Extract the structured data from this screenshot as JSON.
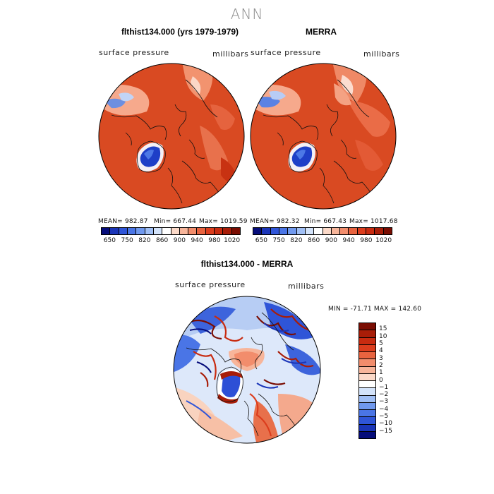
{
  "title": "ANN",
  "left_panel": {
    "title": "flthist134.000 (yrs 1979-1979)",
    "variable": "surface pressure",
    "units": "millibars",
    "mean_label": "MEAN= 982.87",
    "min_label": "Min= 667.44",
    "max_label": "Max= 1019.59"
  },
  "right_panel": {
    "title": "MERRA",
    "variable": "surface pressure",
    "units": "millibars",
    "mean_label": "MEAN= 982.32",
    "min_label": "Min= 667.43",
    "max_label": "Max= 1017.68"
  },
  "diff_panel": {
    "title": "flthist134.000 - MERRA",
    "variable": "surface pressure",
    "units": "millibars",
    "minmax_label": "MIN = -71.71 MAX = 142.60"
  },
  "abs_colorbar": {
    "colors": [
      "#050c7a",
      "#1a35b8",
      "#2f55d8",
      "#4a75e6",
      "#7099ee",
      "#a0bff5",
      "#d3e3fa",
      "#ffffff",
      "#fbd9c8",
      "#f7b59a",
      "#f28d6c",
      "#e8633f",
      "#dc3d1d",
      "#c82b10",
      "#a81d08",
      "#7a0d02"
    ],
    "labels": [
      "650",
      "750",
      "820",
      "860",
      "900",
      "940",
      "980",
      "1020"
    ]
  },
  "diff_colorbar": {
    "colors": [
      "#7a0d02",
      "#a81d08",
      "#c82b10",
      "#dc3d1d",
      "#e8633f",
      "#f28d6c",
      "#f7b59a",
      "#fbd9c8",
      "#ffffff",
      "#d3e3fa",
      "#a0bff5",
      "#7099ee",
      "#4a75e6",
      "#2f55d8",
      "#1a35b8",
      "#050c7a"
    ],
    "labels": [
      "15",
      "10",
      "5",
      "4",
      "3",
      "2",
      "1",
      "0",
      "−1",
      "−2",
      "−3",
      "−4",
      "−5",
      "−10",
      "−15"
    ]
  }
}
